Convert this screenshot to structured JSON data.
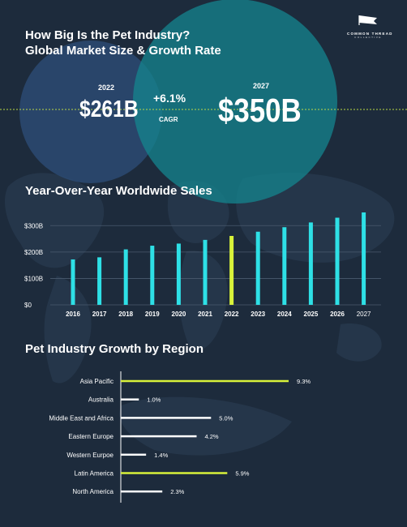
{
  "logo": {
    "name": "COMMON THREAD",
    "sub": "COLLECTIVE"
  },
  "header": {
    "title_line1": "How Big Is the Pet Industry?",
    "title_line2": "Global Market Size & Growth Rate"
  },
  "market": {
    "year_start": "2022",
    "value_start": "$261B",
    "growth": "+6.1%",
    "growth_label": "CAGR",
    "year_end": "2027",
    "value_end": "$350B"
  },
  "colors": {
    "background": "#1d2b3c",
    "circle_left": "#2b4a72",
    "circle_right": "#14868f",
    "bar": "#2ee0e6",
    "bar_highlight": "#d8f23a",
    "region_bar": "#ffffff",
    "region_highlight": "#d8f23a",
    "dotted_line": "#b9d845"
  },
  "chart_data": [
    {
      "type": "bar",
      "title": "Year-Over-Year Worldwide Sales",
      "categories": [
        "2016",
        "2017",
        "2018",
        "2019",
        "2020",
        "2021",
        "2022",
        "2023",
        "2024",
        "2025",
        "2026",
        "2027"
      ],
      "values": [
        172,
        180,
        210,
        224,
        232,
        246,
        261,
        277,
        294,
        312,
        330,
        350
      ],
      "highlight": "2022",
      "unit": "$B",
      "ylim": [
        0,
        350
      ],
      "yticks": [
        0,
        100,
        200,
        300
      ],
      "ytick_labels": [
        "$0",
        "$100B",
        "$200B",
        "$300B"
      ],
      "grid": true
    },
    {
      "type": "bar",
      "orientation": "horizontal",
      "title": "Pet Industry Growth by Region",
      "categories": [
        "Asia Pacific",
        "Australia",
        "Middle East and Africa",
        "Eastern Europe",
        "Western Eurpoe",
        "Latin America",
        "North America"
      ],
      "values": [
        9.3,
        1.0,
        5.0,
        4.2,
        1.4,
        5.9,
        2.3
      ],
      "value_labels": [
        "9.3%",
        "1.0%",
        "5.0%",
        "4.2%",
        "1.4%",
        "5.9%",
        "2.3%"
      ],
      "highlight": [
        "Asia Pacific",
        "Latin America"
      ],
      "unit": "%",
      "xlim": [
        0,
        9.3
      ]
    }
  ]
}
